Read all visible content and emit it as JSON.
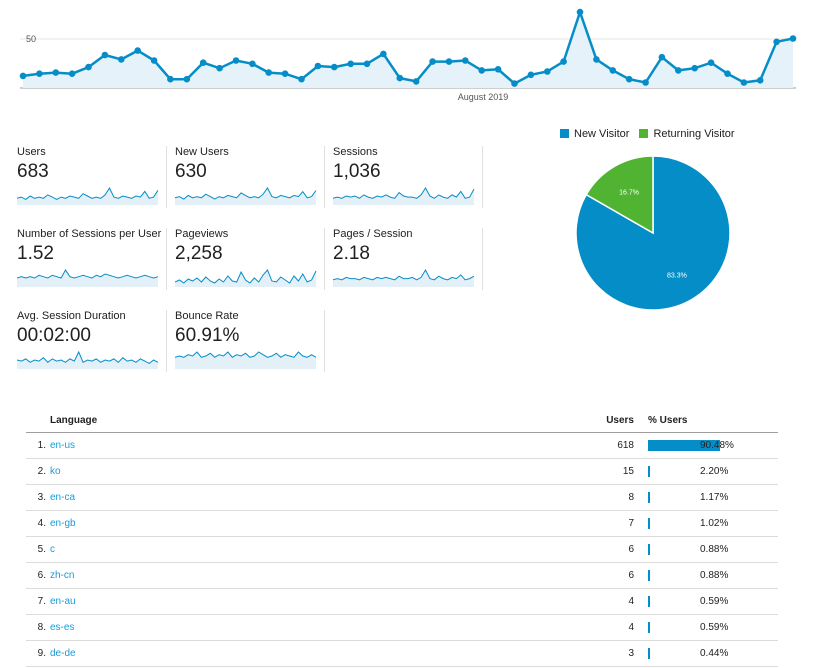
{
  "chart_data": [
    {
      "type": "line",
      "title": "",
      "xlabel": "August 2019",
      "ylabel": "",
      "y_tick_labels": [
        "50"
      ],
      "ylim": [
        0,
        80
      ],
      "grid": true,
      "series": [
        {
          "values": [
            11,
            13,
            14,
            13,
            19,
            30,
            26,
            34,
            25,
            8,
            8,
            23,
            18,
            25,
            22,
            14,
            13,
            8,
            20,
            19,
            22,
            22,
            31,
            9,
            6,
            24,
            24,
            25,
            16,
            17,
            4,
            12,
            15,
            24,
            69,
            26,
            16,
            8,
            5,
            28,
            16,
            18,
            23,
            13,
            5,
            7,
            42,
            45
          ]
        }
      ],
      "color": "#058dc7"
    },
    {
      "type": "pie",
      "series": [
        {
          "values": [
            83.3,
            16.7
          ]
        }
      ],
      "labels": [
        "New Visitor",
        "Returning Visitor"
      ],
      "data_labels": [
        "83.3%",
        "16.7%"
      ],
      "colors": [
        "#058dc7",
        "#50b432"
      ],
      "legend": "top"
    }
  ],
  "metrics": [
    {
      "label": "Users",
      "value": "683",
      "spark": [
        5,
        6,
        4,
        7,
        5,
        6,
        5,
        8,
        6,
        4,
        6,
        5,
        7,
        6,
        5,
        9,
        7,
        5,
        6,
        5,
        8,
        14,
        6,
        5,
        7,
        6,
        5,
        7,
        6,
        11,
        5,
        6,
        12
      ]
    },
    {
      "label": "New Users",
      "value": "630",
      "spark": [
        5,
        6,
        4,
        7,
        5,
        6,
        5,
        8,
        6,
        4,
        6,
        5,
        7,
        6,
        5,
        9,
        7,
        5,
        6,
        5,
        8,
        13,
        6,
        5,
        7,
        6,
        5,
        7,
        6,
        10,
        5,
        6,
        11
      ]
    },
    {
      "label": "Sessions",
      "value": "1,036",
      "spark": [
        5,
        6,
        5,
        7,
        6,
        7,
        5,
        8,
        6,
        5,
        7,
        6,
        8,
        6,
        5,
        10,
        7,
        6,
        6,
        5,
        8,
        14,
        7,
        5,
        8,
        6,
        5,
        8,
        6,
        11,
        5,
        6,
        13
      ]
    },
    {
      "label": "Number of Sessions per User",
      "value": "1.52",
      "spark": [
        6,
        7,
        6,
        7,
        6,
        8,
        7,
        6,
        8,
        7,
        6,
        12,
        7,
        6,
        7,
        8,
        7,
        6,
        8,
        7,
        9,
        8,
        7,
        6,
        7,
        8,
        7,
        6,
        7,
        8,
        7,
        6,
        7
      ]
    },
    {
      "label": "Pageviews",
      "value": "2,258",
      "spark": [
        4,
        6,
        3,
        7,
        5,
        8,
        4,
        9,
        5,
        3,
        7,
        4,
        10,
        5,
        4,
        14,
        6,
        3,
        8,
        4,
        11,
        16,
        5,
        4,
        9,
        6,
        3,
        10,
        5,
        12,
        4,
        6,
        15
      ]
    },
    {
      "label": "Pages / Session",
      "value": "2.18",
      "spark": [
        5,
        6,
        5,
        7,
        6,
        6,
        5,
        7,
        6,
        5,
        7,
        6,
        7,
        6,
        5,
        8,
        6,
        6,
        7,
        5,
        7,
        13,
        6,
        5,
        8,
        6,
        5,
        7,
        6,
        9,
        5,
        6,
        8
      ]
    },
    {
      "label": "Avg. Session Duration",
      "value": "00:02:00",
      "spark": [
        7,
        6,
        8,
        5,
        7,
        6,
        9,
        5,
        8,
        6,
        7,
        5,
        8,
        6,
        14,
        5,
        7,
        6,
        8,
        5,
        7,
        6,
        8,
        5,
        9,
        6,
        7,
        5,
        8,
        6,
        4,
        7,
        5
      ]
    },
    {
      "label": "Bounce Rate",
      "value": "60.91%",
      "spark": [
        8,
        9,
        8,
        10,
        9,
        12,
        8,
        9,
        11,
        8,
        10,
        9,
        12,
        8,
        10,
        9,
        11,
        8,
        9,
        12,
        10,
        8,
        9,
        11,
        8,
        10,
        9,
        8,
        12,
        9,
        8,
        10,
        8
      ]
    }
  ],
  "table": {
    "headers": {
      "language": "Language",
      "users": "Users",
      "pct_users": "% Users"
    },
    "rows": [
      {
        "idx": "1.",
        "lang": "en-us",
        "users": "618",
        "pct": "90.48%",
        "share": 90.48
      },
      {
        "idx": "2.",
        "lang": "ko",
        "users": "15",
        "pct": "2.20%",
        "share": 2.2
      },
      {
        "idx": "3.",
        "lang": "en-ca",
        "users": "8",
        "pct": "1.17%",
        "share": 1.17
      },
      {
        "idx": "4.",
        "lang": "en-gb",
        "users": "7",
        "pct": "1.02%",
        "share": 1.02
      },
      {
        "idx": "5.",
        "lang": "c",
        "users": "6",
        "pct": "0.88%",
        "share": 0.88
      },
      {
        "idx": "6.",
        "lang": "zh-cn",
        "users": "6",
        "pct": "0.88%",
        "share": 0.88
      },
      {
        "idx": "7.",
        "lang": "en-au",
        "users": "4",
        "pct": "0.59%",
        "share": 0.59
      },
      {
        "idx": "8.",
        "lang": "es-es",
        "users": "4",
        "pct": "0.59%",
        "share": 0.59
      },
      {
        "idx": "9.",
        "lang": "de-de",
        "users": "3",
        "pct": "0.44%",
        "share": 0.44
      }
    ]
  }
}
